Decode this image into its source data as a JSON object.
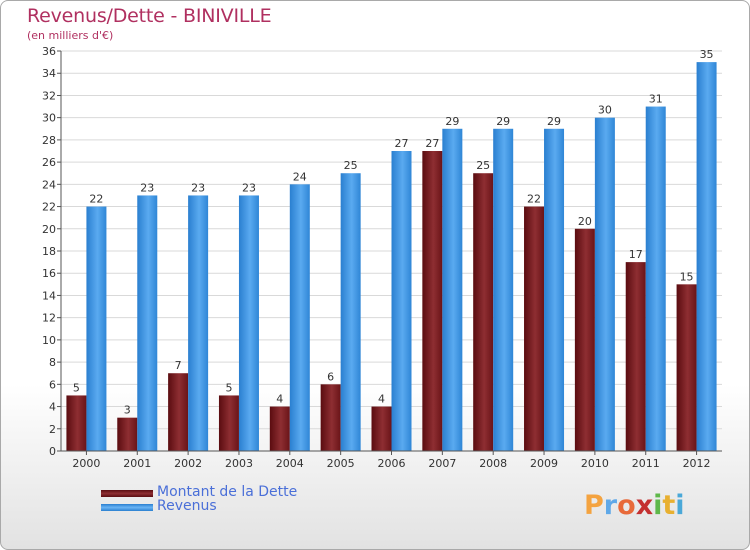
{
  "header": {
    "title": "Revenus/Dette - BINIVILLE",
    "subtitle": "(en milliers d'€)"
  },
  "logo": {
    "letters": [
      "P",
      "r",
      "o",
      "x",
      "i",
      "t",
      "i"
    ],
    "colors": [
      "#f4a340",
      "#5fa8e8",
      "#e86a3a",
      "#c43030",
      "#5fb84a",
      "#e8b030",
      "#4aa8d8"
    ]
  },
  "colors": {
    "debt": "#7a1e22",
    "revenue": "#2e8ad8"
  },
  "chart_data": {
    "type": "bar",
    "categories": [
      "2000",
      "2001",
      "2002",
      "2003",
      "2004",
      "2005",
      "2006",
      "2007",
      "2008",
      "2009",
      "2010",
      "2011",
      "2012"
    ],
    "series": [
      {
        "name": "Montant de la Dette",
        "values": [
          5,
          3,
          7,
          5,
          4,
          6,
          4,
          27,
          25,
          22,
          20,
          17,
          15
        ]
      },
      {
        "name": "Revenus",
        "values": [
          22,
          23,
          23,
          23,
          24,
          25,
          27,
          29,
          29,
          29,
          30,
          31,
          35
        ]
      }
    ],
    "title": "Revenus/Dette - BINIVILLE",
    "subtitle": "(en milliers d'€)",
    "ylim": [
      0,
      36
    ],
    "yticks": [
      0,
      2,
      4,
      6,
      8,
      10,
      12,
      14,
      16,
      18,
      20,
      22,
      24,
      26,
      28,
      30,
      32,
      34,
      36
    ],
    "grid": true,
    "legend": "bottom-left"
  }
}
